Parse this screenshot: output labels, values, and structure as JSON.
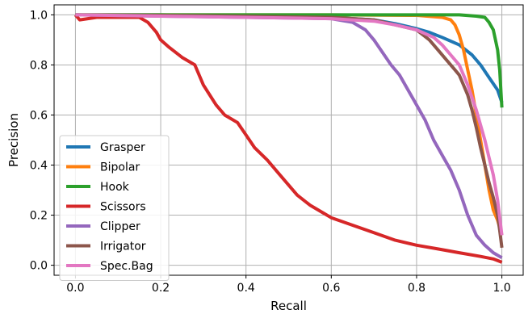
{
  "chart_data": {
    "type": "line",
    "title": "",
    "xlabel": "Recall",
    "ylabel": "Precision",
    "xlim": [
      -0.05,
      1.05
    ],
    "ylim": [
      -0.04,
      1.04
    ],
    "xticks": [
      "0.0",
      "0.2",
      "0.4",
      "0.6",
      "0.8",
      "1.0"
    ],
    "yticks": [
      "0.0",
      "0.2",
      "0.4",
      "0.6",
      "0.8",
      "1.0"
    ],
    "grid": true,
    "legend_position": "lower-left",
    "series": [
      {
        "name": "Grasper",
        "color": "#1f77b4",
        "x": [
          0.0,
          0.2,
          0.4,
          0.6,
          0.7,
          0.75,
          0.8,
          0.83,
          0.86,
          0.9,
          0.93,
          0.95,
          0.97,
          0.99,
          1.0
        ],
        "y": [
          1.0,
          1.0,
          0.995,
          0.99,
          0.98,
          0.965,
          0.945,
          0.93,
          0.91,
          0.88,
          0.84,
          0.8,
          0.75,
          0.7,
          0.65
        ]
      },
      {
        "name": "Bipolar",
        "color": "#ff7f0e",
        "x": [
          0.0,
          0.3,
          0.6,
          0.8,
          0.86,
          0.88,
          0.89,
          0.9,
          0.91,
          0.92,
          0.93,
          0.94,
          0.95,
          0.96,
          0.97,
          0.98,
          0.99,
          1.0
        ],
        "y": [
          1.0,
          1.0,
          1.0,
          0.998,
          0.99,
          0.98,
          0.96,
          0.92,
          0.86,
          0.78,
          0.7,
          0.6,
          0.5,
          0.4,
          0.3,
          0.22,
          0.18,
          0.12
        ]
      },
      {
        "name": "Hook",
        "color": "#2ca02c",
        "x": [
          0.0,
          0.3,
          0.6,
          0.8,
          0.9,
          0.94,
          0.96,
          0.97,
          0.98,
          0.99,
          0.995,
          1.0
        ],
        "y": [
          1.0,
          1.0,
          1.0,
          1.0,
          1.0,
          0.995,
          0.99,
          0.97,
          0.94,
          0.86,
          0.78,
          0.63
        ]
      },
      {
        "name": "Scissors",
        "color": "#d62728",
        "x": [
          0.0,
          0.01,
          0.05,
          0.1,
          0.15,
          0.17,
          0.19,
          0.2,
          0.22,
          0.25,
          0.28,
          0.3,
          0.33,
          0.35,
          0.38,
          0.4,
          0.42,
          0.45,
          0.48,
          0.5,
          0.52,
          0.55,
          0.58,
          0.6,
          0.65,
          0.7,
          0.75,
          0.8,
          0.85,
          0.9,
          0.95,
          0.98,
          1.0
        ],
        "y": [
          1.0,
          0.98,
          0.99,
          0.99,
          0.99,
          0.97,
          0.93,
          0.9,
          0.87,
          0.83,
          0.8,
          0.72,
          0.64,
          0.6,
          0.57,
          0.52,
          0.47,
          0.42,
          0.36,
          0.32,
          0.28,
          0.24,
          0.21,
          0.19,
          0.16,
          0.13,
          0.1,
          0.08,
          0.065,
          0.05,
          0.035,
          0.025,
          0.012
        ]
      },
      {
        "name": "Clipper",
        "color": "#9467bd",
        "x": [
          0.0,
          0.2,
          0.4,
          0.6,
          0.65,
          0.68,
          0.7,
          0.72,
          0.74,
          0.76,
          0.78,
          0.8,
          0.82,
          0.84,
          0.86,
          0.88,
          0.9,
          0.92,
          0.94,
          0.96,
          0.98,
          1.0
        ],
        "y": [
          1.0,
          0.995,
          0.99,
          0.985,
          0.97,
          0.94,
          0.9,
          0.85,
          0.8,
          0.76,
          0.7,
          0.64,
          0.58,
          0.5,
          0.44,
          0.38,
          0.3,
          0.2,
          0.12,
          0.08,
          0.05,
          0.03
        ]
      },
      {
        "name": "Irrigator",
        "color": "#8c564b",
        "x": [
          0.0,
          0.2,
          0.4,
          0.6,
          0.7,
          0.75,
          0.8,
          0.83,
          0.85,
          0.87,
          0.89,
          0.9,
          0.91,
          0.92,
          0.93,
          0.94,
          0.95,
          0.96,
          0.97,
          0.98,
          0.99,
          0.995,
          1.0
        ],
        "y": [
          1.0,
          0.998,
          0.995,
          0.99,
          0.98,
          0.96,
          0.94,
          0.9,
          0.86,
          0.82,
          0.78,
          0.76,
          0.72,
          0.68,
          0.62,
          0.55,
          0.47,
          0.4,
          0.33,
          0.27,
          0.2,
          0.14,
          0.07
        ]
      },
      {
        "name": "Spec.Bag",
        "color": "#e377c2",
        "x": [
          0.0,
          0.2,
          0.4,
          0.6,
          0.7,
          0.75,
          0.8,
          0.84,
          0.86,
          0.88,
          0.9,
          0.91,
          0.92,
          0.93,
          0.94,
          0.95,
          0.96,
          0.97,
          0.98,
          0.99,
          1.0
        ],
        "y": [
          1.0,
          0.995,
          0.99,
          0.985,
          0.975,
          0.96,
          0.94,
          0.91,
          0.88,
          0.84,
          0.8,
          0.76,
          0.72,
          0.67,
          0.62,
          0.56,
          0.5,
          0.43,
          0.36,
          0.26,
          0.12
        ]
      }
    ]
  }
}
